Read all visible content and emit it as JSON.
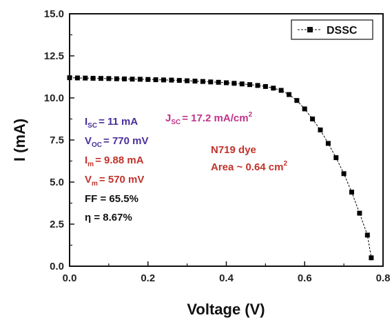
{
  "chart_data": {
    "type": "scatter",
    "xlabel": "Voltage (V)",
    "ylabel": "I (mA)",
    "xlim": [
      0.0,
      0.8
    ],
    "ylim": [
      0.0,
      15.0
    ],
    "xticks": [
      "0.0",
      "0.2",
      "0.4",
      "0.6",
      "0.8"
    ],
    "yticks": [
      "0.0",
      "2.5",
      "5.0",
      "7.5",
      "10.0",
      "12.5",
      "15.0"
    ],
    "grid": false,
    "legend": {
      "position": "top-right",
      "label": "DSSC"
    },
    "series": [
      {
        "name": "DSSC",
        "color": "#000000",
        "marker": "square",
        "line": "dashed",
        "x": [
          0.0,
          0.02,
          0.04,
          0.06,
          0.08,
          0.1,
          0.12,
          0.14,
          0.16,
          0.18,
          0.2,
          0.22,
          0.24,
          0.26,
          0.28,
          0.3,
          0.32,
          0.34,
          0.36,
          0.38,
          0.4,
          0.42,
          0.44,
          0.46,
          0.48,
          0.5,
          0.52,
          0.54,
          0.56,
          0.58,
          0.6,
          0.62,
          0.64,
          0.66,
          0.68,
          0.7,
          0.72,
          0.74,
          0.76,
          0.77
        ],
        "y": [
          11.2,
          11.19,
          11.18,
          11.17,
          11.16,
          11.15,
          11.14,
          11.13,
          11.12,
          11.11,
          11.1,
          11.08,
          11.07,
          11.06,
          11.04,
          11.02,
          11.0,
          10.98,
          10.95,
          10.93,
          10.9,
          10.87,
          10.83,
          10.79,
          10.74,
          10.68,
          10.58,
          10.45,
          10.2,
          9.85,
          9.35,
          8.75,
          8.1,
          7.3,
          6.45,
          5.5,
          4.4,
          3.15,
          1.85,
          0.5
        ]
      }
    ],
    "annotations": {
      "isc": {
        "main": "I",
        "sub": "SC",
        "rest": "= 11 mA",
        "color": "#4a2f9a"
      },
      "voc": {
        "main": "V",
        "sub": "OC",
        "rest": "= 770 mV",
        "color": "#4a2f9a"
      },
      "im": {
        "main": "I",
        "sub": "m",
        "rest": "= 9.88 mA",
        "color": "#c0332b"
      },
      "vm": {
        "main": "V",
        "sub": "m",
        "rest": "= 570 mV",
        "color": "#c0332b"
      },
      "ff": {
        "text": "FF = 65.5%",
        "color": "#111111"
      },
      "eta": {
        "text": "η = 8.67%",
        "color": "#111111"
      },
      "jsc": {
        "main": "J",
        "sub": "SC",
        "rest": "= 17.2 mA/cm",
        "sup": "2",
        "color": "#c0338a"
      },
      "dye": {
        "text": "N719 dye",
        "color": "#c0332b"
      },
      "area": {
        "text": "Area ~ 0.64 cm",
        "sup": "2",
        "color": "#c0332b"
      }
    }
  }
}
